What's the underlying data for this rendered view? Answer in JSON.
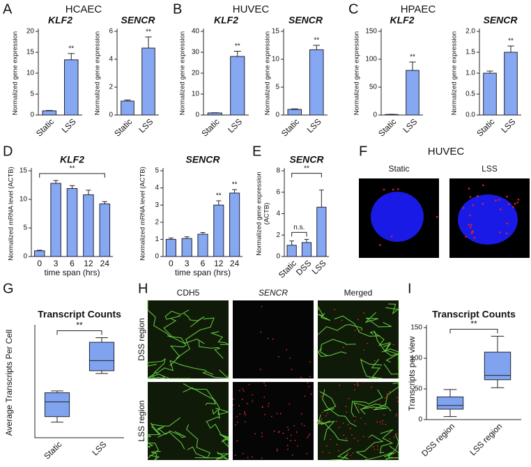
{
  "panels": [
    {
      "letter": "A",
      "title": "HCAEC"
    },
    {
      "letter": "B",
      "title": "HUVEC"
    },
    {
      "letter": "C",
      "title": "HPAEC"
    },
    {
      "letter": "D"
    },
    {
      "letter": "E"
    },
    {
      "letter": "F",
      "title": "HUVEC",
      "images": [
        "Static",
        "LSS"
      ]
    },
    {
      "letter": "G"
    },
    {
      "letter": "H",
      "columns": [
        "CDH5",
        "SENCR",
        "Merged"
      ],
      "rows": [
        "DSS region",
        "LSS region"
      ]
    },
    {
      "letter": "I"
    }
  ],
  "chart_data": [
    {
      "type": "bar",
      "title": "KLF2",
      "ylabel": "Normalized gene expression",
      "categories": [
        "Static",
        "LSS"
      ],
      "values": [
        1,
        13.2
      ],
      "errors": [
        0.1,
        1.5
      ],
      "ylim": [
        0,
        20
      ],
      "yticks": [
        0,
        5,
        10,
        15,
        20
      ],
      "color": "#86a7f1",
      "annotations": [
        {
          "text": "**",
          "over": "LSS"
        }
      ]
    },
    {
      "type": "bar",
      "title": "SENCR",
      "ylabel": "Normalized gene expression",
      "categories": [
        "Static",
        "LSS"
      ],
      "values": [
        1,
        4.8
      ],
      "errors": [
        0.08,
        0.8
      ],
      "ylim": [
        0,
        6
      ],
      "yticks": [
        0,
        2,
        4,
        6
      ],
      "color": "#86a7f1",
      "annotations": [
        {
          "text": "**",
          "over": "LSS"
        }
      ]
    },
    {
      "type": "bar",
      "title": "KLF2",
      "ylabel": "Normalized gene expression",
      "categories": [
        "Static",
        "LSS"
      ],
      "values": [
        1,
        28
      ],
      "errors": [
        0.1,
        2.5
      ],
      "ylim": [
        0,
        40
      ],
      "yticks": [
        0,
        10,
        20,
        30,
        40
      ],
      "color": "#86a7f1",
      "annotations": [
        {
          "text": "**",
          "over": "LSS"
        }
      ]
    },
    {
      "type": "bar",
      "title": "SENCR",
      "ylabel": "Normalized gene expression",
      "categories": [
        "Static",
        "LSS"
      ],
      "values": [
        1,
        11.7
      ],
      "errors": [
        0.1,
        0.8
      ],
      "ylim": [
        0,
        15
      ],
      "yticks": [
        0,
        5,
        10,
        15
      ],
      "color": "#86a7f1",
      "annotations": [
        {
          "text": "**",
          "over": "LSS"
        }
      ]
    },
    {
      "type": "bar",
      "title": "KLF2",
      "ylabel": "Normalized gene expression",
      "categories": [
        "Static",
        "LSS"
      ],
      "values": [
        1,
        80
      ],
      "errors": [
        0.3,
        15
      ],
      "ylim": [
        0,
        150
      ],
      "yticks": [
        0,
        50,
        100,
        150
      ],
      "color": "#86a7f1",
      "annotations": [
        {
          "text": "**",
          "over": "LSS"
        }
      ]
    },
    {
      "type": "bar",
      "title": "SENCR",
      "ylabel": "Normalized gene expression",
      "categories": [
        "Static",
        "LSS"
      ],
      "values": [
        1.0,
        1.5
      ],
      "errors": [
        0.05,
        0.15
      ],
      "ylim": [
        0,
        2
      ],
      "yticks": [
        {
          "value": 0,
          "label": "0.0"
        },
        {
          "value": 0.5,
          "label": "0.5"
        },
        {
          "value": 1,
          "label": "1.0"
        },
        {
          "value": 1.5,
          "label": "1.5"
        },
        {
          "value": 2,
          "label": "2.0"
        }
      ],
      "color": "#86a7f1",
      "annotations": [
        {
          "text": "**",
          "over": "LSS"
        }
      ]
    },
    {
      "type": "bar",
      "title": "KLF2",
      "ylabel": "Normalized mRNA level (ACTB)",
      "xlabel": "time span (hrs)",
      "categories": [
        "0",
        "3",
        "6",
        "12",
        "24"
      ],
      "values": [
        1,
        12.8,
        11.9,
        10.8,
        9.2
      ],
      "errors": [
        0.1,
        0.5,
        0.5,
        0.8,
        0.4
      ],
      "ylim": [
        0,
        15
      ],
      "yticks": [
        0,
        5,
        10,
        15
      ],
      "color": "#86a7f1",
      "annotations": [
        {
          "text": "**",
          "between": [
            "0",
            "24"
          ]
        }
      ]
    },
    {
      "type": "bar",
      "title": "SENCR",
      "ylabel": "Normalized mRNA level (ACTB)",
      "xlabel": "time span (hrs)",
      "categories": [
        "0",
        "3",
        "6",
        "12",
        "24"
      ],
      "values": [
        1.0,
        1.05,
        1.3,
        3.0,
        3.7
      ],
      "errors": [
        0.08,
        0.1,
        0.1,
        0.25,
        0.2
      ],
      "ylim": [
        0,
        5
      ],
      "yticks": [
        0,
        1,
        2,
        3,
        4,
        5
      ],
      "color": "#86a7f1",
      "annotations": [
        {
          "text": "**",
          "over": "12"
        },
        {
          "text": "**",
          "over": "24"
        }
      ]
    },
    {
      "type": "bar",
      "title": "SENCR",
      "ylabel": [
        "Normalized gene expression",
        "(ACTB)"
      ],
      "categories": [
        "Static",
        "DSS",
        "LSS"
      ],
      "values": [
        1.05,
        1.3,
        4.6
      ],
      "errors": [
        0.4,
        0.3,
        1.6
      ],
      "ylim": [
        0,
        8
      ],
      "yticks": [
        0,
        2,
        4,
        6,
        8
      ],
      "color": "#86a7f1",
      "annotations": [
        {
          "text": "n.s.",
          "between": [
            "Static",
            "DSS"
          ]
        },
        {
          "text": "**",
          "between": [
            "Static",
            "LSS"
          ]
        }
      ]
    },
    {
      "type": "box",
      "title": "Transcript Counts",
      "ylabel": "Average Transcripts Per Cell",
      "categories": [
        "Static",
        "LSS"
      ],
      "boxes": [
        {
          "min": 0.85,
          "q1": 1.15,
          "median": 1.95,
          "q3": 2.45,
          "max": 2.55
        },
        {
          "min": 3.5,
          "q1": 3.65,
          "median": 4.2,
          "q3": 5.2,
          "max": 5.45
        }
      ],
      "ylim": [
        0,
        6
      ],
      "color": "#7fa3ee",
      "annotations": [
        {
          "text": "**",
          "between": [
            "Static",
            "LSS"
          ]
        }
      ]
    },
    {
      "type": "box",
      "title": "Transcript Counts",
      "ylabel": "Transcripts per view",
      "categories": [
        "DSS region",
        "LSS region"
      ],
      "boxes": [
        {
          "min": 5,
          "q1": 17,
          "median": 23,
          "q3": 37,
          "max": 49
        },
        {
          "min": 52,
          "q1": 65,
          "median": 72,
          "q3": 110,
          "max": 136
        }
      ],
      "ylim": [
        0,
        150
      ],
      "yticks": [
        0,
        50,
        100,
        150
      ],
      "color": "#7fa3ee",
      "annotations": [
        {
          "text": "**",
          "between": [
            "DSS region",
            "LSS region"
          ]
        }
      ]
    }
  ]
}
